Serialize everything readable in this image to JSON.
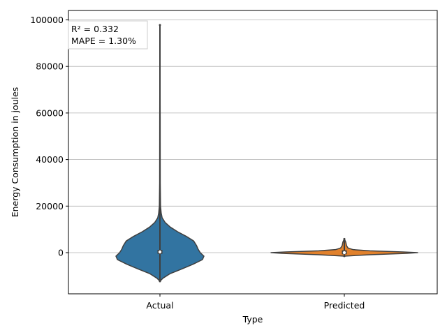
{
  "chart_data": {
    "type": "violin",
    "categories": [
      "Actual",
      "Predicted"
    ],
    "xlabel": "Type",
    "ylabel": "Energy Consumption in joules",
    "ylim": [
      -19000,
      104000
    ],
    "yticks": [
      0,
      20000,
      40000,
      60000,
      80000,
      100000
    ],
    "ytick_labels": [
      "0",
      "20000",
      "40000",
      "60000",
      "80000",
      "100000"
    ],
    "grid": "horizontal",
    "series": [
      {
        "category": "Actual",
        "color": "#3274a1",
        "min": -12300,
        "max": 97800,
        "q1": -200,
        "median": 300,
        "q3": 900,
        "density": [
          [
            -12300,
            0.0
          ],
          [
            -11000,
            0.04
          ],
          [
            -9000,
            0.14
          ],
          [
            -7000,
            0.3
          ],
          [
            -5000,
            0.45
          ],
          [
            -3000,
            0.58
          ],
          [
            -1500,
            0.6
          ],
          [
            0,
            0.55
          ],
          [
            1500,
            0.52
          ],
          [
            3000,
            0.5
          ],
          [
            5000,
            0.46
          ],
          [
            7000,
            0.36
          ],
          [
            9000,
            0.24
          ],
          [
            11000,
            0.14
          ],
          [
            13000,
            0.07
          ],
          [
            15000,
            0.03
          ],
          [
            17000,
            0.017
          ],
          [
            20000,
            0.008
          ],
          [
            30000,
            0.004
          ],
          [
            60000,
            0.003
          ],
          [
            97800,
            0.0
          ]
        ]
      },
      {
        "category": "Predicted",
        "color": "#e1812c",
        "min": -1500,
        "max": 5900,
        "q1": -400,
        "median": 0,
        "q3": 700,
        "density": [
          [
            -1500,
            0.0
          ],
          [
            -900,
            0.35
          ],
          [
            -300,
            0.85
          ],
          [
            0,
            1.0
          ],
          [
            300,
            0.8
          ],
          [
            800,
            0.35
          ],
          [
            1300,
            0.12
          ],
          [
            2000,
            0.05
          ],
          [
            3000,
            0.03
          ],
          [
            4500,
            0.02
          ],
          [
            5900,
            0.0
          ]
        ]
      }
    ],
    "annotation": {
      "lines": [
        "R² = 0.332",
        "MAPE = 1.30%"
      ],
      "placement": "top-left"
    }
  }
}
